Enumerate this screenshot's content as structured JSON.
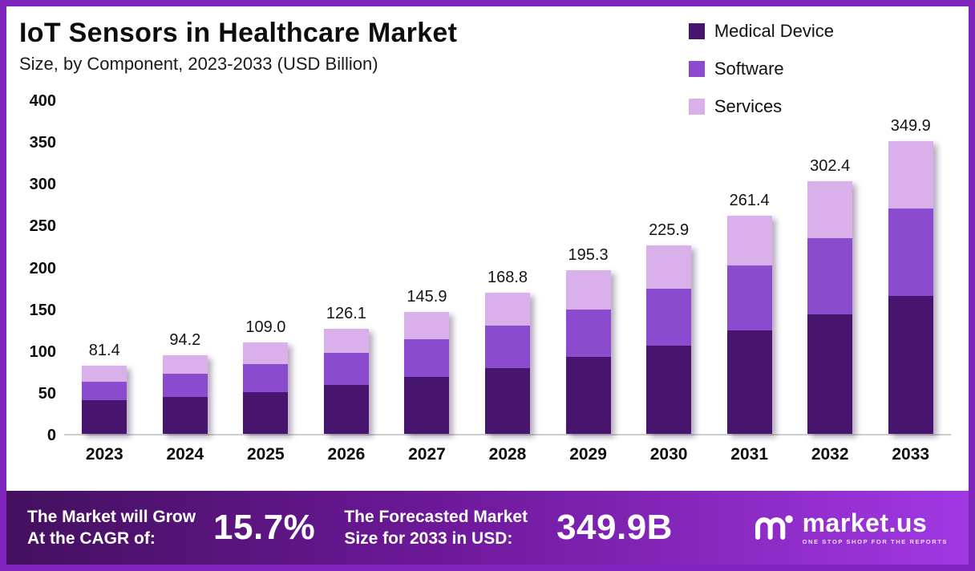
{
  "header": {
    "title": "IoT Sensors in Healthcare Market",
    "subtitle": "Size, by Component, 2023-2033 (USD Billion)"
  },
  "chart_data": {
    "type": "bar",
    "stacked": true,
    "title": "IoT Sensors in Healthcare Market Size, by Component, 2023-2033 (USD Billion)",
    "xlabel": "",
    "ylabel": "USD Billion",
    "ylim": [
      0,
      400
    ],
    "yticks": [
      0,
      50,
      100,
      150,
      200,
      250,
      300,
      350,
      400
    ],
    "grid": false,
    "legend_position": "top-right",
    "categories": [
      "2023",
      "2024",
      "2025",
      "2026",
      "2027",
      "2028",
      "2029",
      "2030",
      "2031",
      "2032",
      "2033"
    ],
    "series": [
      {
        "name": "Medical Device",
        "color": "#47156e",
        "values": [
          40,
          44,
          50,
          59,
          68,
          79,
          92,
          106,
          124,
          143,
          165
        ]
      },
      {
        "name": "Software",
        "color": "#8b4bce",
        "values": [
          22,
          28,
          33,
          38,
          45,
          51,
          57,
          68,
          77,
          91,
          105
        ]
      },
      {
        "name": "Services",
        "color": "#d9b0ea",
        "values": [
          19.4,
          22.2,
          26.0,
          29.1,
          32.9,
          38.8,
          46.3,
          51.9,
          60.4,
          68.4,
          79.9
        ]
      }
    ],
    "totals": [
      "81.4",
      "94.2",
      "109.0",
      "126.1",
      "145.9",
      "168.8",
      "195.3",
      "225.9",
      "261.4",
      "302.4",
      "349.9"
    ]
  },
  "footer": {
    "cagr_label_line1": "The Market will Grow",
    "cagr_label_line2": "At the CAGR of:",
    "cagr_value": "15.7%",
    "forecast_label_line1": "The Forecasted Market",
    "forecast_label_line2": "Size for 2033 in USD:",
    "forecast_value": "349.9B",
    "brand": "market.us",
    "brand_tagline": "ONE STOP SHOP FOR THE REPORTS"
  }
}
